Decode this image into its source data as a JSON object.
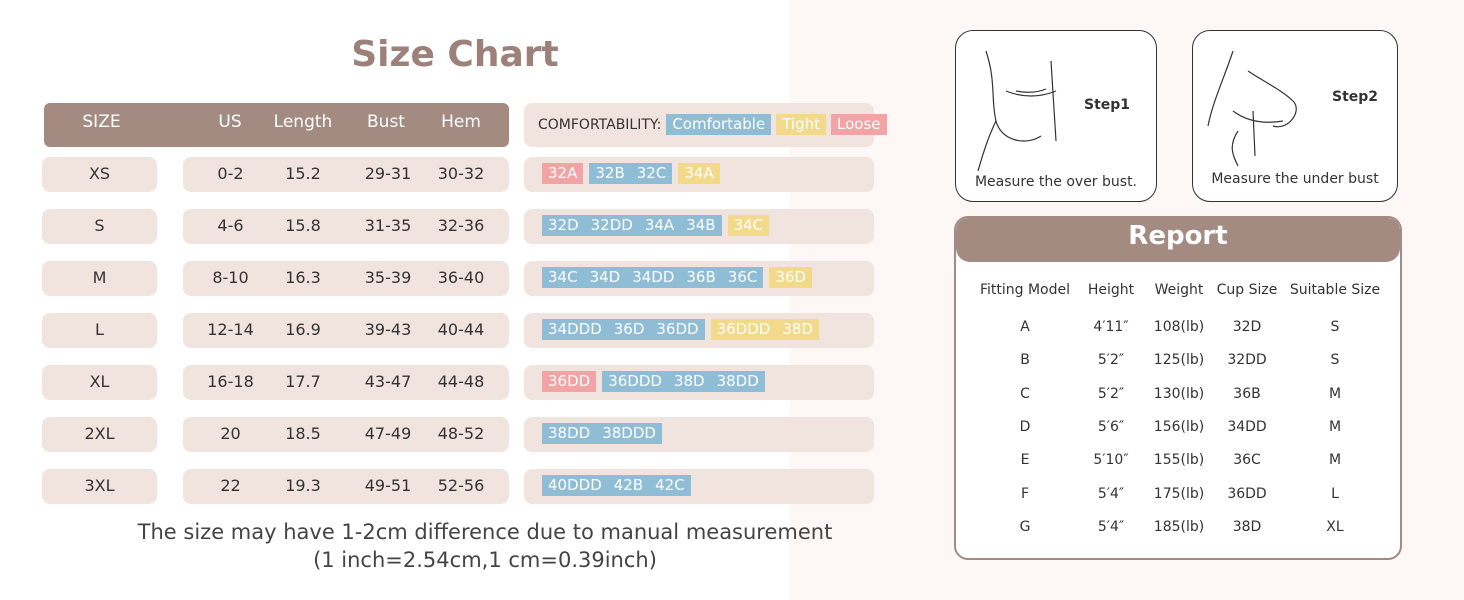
{
  "size_chart": {
    "title": "Size Chart",
    "columns": [
      "SIZE",
      "US",
      "Length",
      "Bust",
      "Hem"
    ],
    "rows": [
      [
        "XS",
        "0-2",
        "15.2",
        "29-31",
        "30-32"
      ],
      [
        "S",
        "4-6",
        "15.8",
        "31-35",
        "32-36"
      ],
      [
        "M",
        "8-10",
        "16.3",
        "35-39",
        "36-40"
      ],
      [
        "L",
        "12-14",
        "16.9",
        "39-43",
        "40-44"
      ],
      [
        "XL",
        "16-18",
        "17.7",
        "43-47",
        "44-48"
      ],
      [
        "2XL",
        "20",
        "18.5",
        "47-49",
        "48-52"
      ],
      [
        "3XL",
        "22",
        "19.3",
        "49-51",
        "52-56"
      ]
    ],
    "comfortability": {
      "label": "COMFORTABILITY:",
      "legend": [
        {
          "name": "Comfortable",
          "color": "#8fbdd6"
        },
        {
          "name": "Tight",
          "color": "#f3d98a"
        },
        {
          "name": "Loose",
          "color": "#f2a3a5"
        }
      ]
    },
    "fits": [
      [
        {
          "cup": "32A",
          "fit": 2
        },
        {
          "cup": "32B",
          "fit": 0
        },
        {
          "cup": "32C",
          "fit": 0
        },
        {
          "cup": "34A",
          "fit": 1
        }
      ],
      [
        {
          "cup": "32D",
          "fit": 0
        },
        {
          "cup": "32DD",
          "fit": 0
        },
        {
          "cup": "34A",
          "fit": 0
        },
        {
          "cup": "34B",
          "fit": 0
        },
        {
          "cup": "34C",
          "fit": 1
        }
      ],
      [
        {
          "cup": "34C",
          "fit": 0
        },
        {
          "cup": "34D",
          "fit": 0
        },
        {
          "cup": "34DD",
          "fit": 0
        },
        {
          "cup": "36B",
          "fit": 0
        },
        {
          "cup": "36C",
          "fit": 0
        },
        {
          "cup": "36D",
          "fit": 1
        }
      ],
      [
        {
          "cup": "34DDD",
          "fit": 0
        },
        {
          "cup": "36D",
          "fit": 0
        },
        {
          "cup": "36DD",
          "fit": 0
        },
        {
          "cup": "36DDD",
          "fit": 1
        },
        {
          "cup": "38D",
          "fit": 1
        }
      ],
      [
        {
          "cup": "36DD",
          "fit": 2
        },
        {
          "cup": "36DDD",
          "fit": 0
        },
        {
          "cup": "38D",
          "fit": 0
        },
        {
          "cup": "38DD",
          "fit": 0
        }
      ],
      [
        {
          "cup": "38DD",
          "fit": 0
        },
        {
          "cup": "38DDD",
          "fit": 0
        }
      ],
      [
        {
          "cup": "40DDD",
          "fit": 0
        },
        {
          "cup": "42B",
          "fit": 0
        },
        {
          "cup": "42C",
          "fit": 0
        }
      ]
    ],
    "note": [
      "The size may have 1-2cm difference due to manual measurement",
      "(1 inch=2.54cm,1 cm=0.39inch)"
    ]
  },
  "steps": [
    {
      "title": "Step1",
      "caption": "Measure the over bust."
    },
    {
      "title": "Step2",
      "caption": "Measure the under bust"
    }
  ],
  "report": {
    "title": "Report",
    "columns": [
      "Fitting Model",
      "Height",
      "Weight",
      "Cup Size",
      "Suitable Size"
    ],
    "rows": [
      [
        "A",
        "4′11″",
        "108(lb)",
        "32D",
        "S"
      ],
      [
        "B",
        "5′2″",
        "125(lb)",
        "32DD",
        "S"
      ],
      [
        "C",
        "5′2″",
        "130(lb)",
        "36B",
        "M"
      ],
      [
        "D",
        "5′6″",
        "156(lb)",
        "34DD",
        "M"
      ],
      [
        "E",
        "5′10″",
        "155(lb)",
        "36C",
        "M"
      ],
      [
        "F",
        "5′4″",
        "175(lb)",
        "36DD",
        "L"
      ],
      [
        "G",
        "5′4″",
        "185(lb)",
        "38D",
        "XL"
      ]
    ]
  }
}
